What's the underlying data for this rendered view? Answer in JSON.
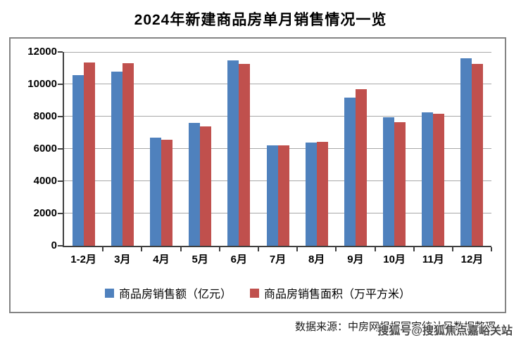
{
  "title": "2024年新建商品房单月销售情况一览",
  "chart_data": {
    "type": "bar",
    "title": "2024年新建商品房单月销售情况一览",
    "categories": [
      "1-2月",
      "3月",
      "4月",
      "5月",
      "6月",
      "7月",
      "8月",
      "9月",
      "10月",
      "11月",
      "12月"
    ],
    "series": [
      {
        "name": "商品房销售额（亿元）",
        "color": "#4F81BD",
        "values": [
          10566,
          10789,
          6712,
          7598,
          11468,
          6197,
          6393,
          9157,
          7975,
          8270,
          11625
        ]
      },
      {
        "name": "商品房销售面积（万平方米）",
        "color": "#C0504D",
        "values": [
          11369,
          11299,
          6584,
          7390,
          11274,
          6233,
          6453,
          9682,
          7646,
          8188,
          11267
        ]
      }
    ],
    "xlabel": "",
    "ylabel": "",
    "ylim": [
      0,
      12000
    ],
    "ytick_interval": 2000,
    "yticks": [
      "12000",
      "10000",
      "8000",
      "6000",
      "4000",
      "2000",
      "0"
    ],
    "grid": true,
    "legend_position": "bottom"
  },
  "footer": {
    "source": "数据来源：中房网根据国家统计局数据整理",
    "watermark": "搜狐号@搜狐焦点嘉峪关站"
  },
  "colors": {
    "sales_amount_blue": "#4F81BD",
    "sales_area_red": "#C0504D",
    "gridline": "#A8A8A8",
    "axis": "#3F3F3F",
    "frame_border": "#848484",
    "title_text": "#000000",
    "watermark_text": "#4A4A4A",
    "background": "#FFFFFF"
  }
}
